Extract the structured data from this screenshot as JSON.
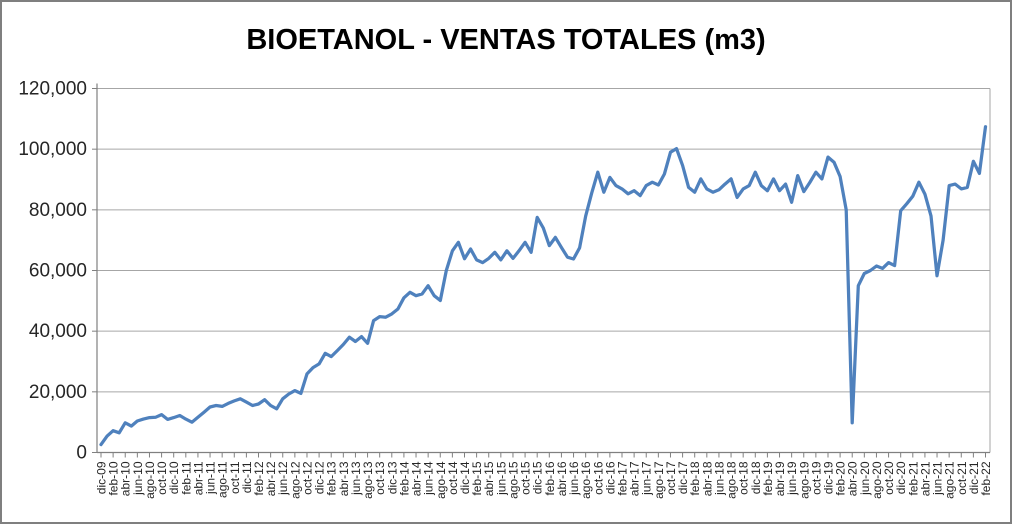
{
  "chart": {
    "title": "BIOETANOL - VENTAS TOTALES (m3)"
  },
  "chart_data": {
    "type": "line",
    "title": "BIOETANOL - VENTAS TOTALES (m3)",
    "xlabel": "",
    "ylabel": "",
    "ylim": [
      0,
      120000
    ],
    "yticks": [
      0,
      20000,
      40000,
      60000,
      80000,
      100000,
      120000
    ],
    "ytick_labels": [
      "0",
      "20,000",
      "40,000",
      "60,000",
      "80,000",
      "100,000",
      "120,000"
    ],
    "grid": "horizontal",
    "legend": "none",
    "line_color": "#4F81BD",
    "grid_color": "#A6A6A6",
    "axis_color": "#808080",
    "x_tick_every": 2,
    "x_tick_labels": [
      "dic-09",
      "feb-10",
      "abr-10",
      "jun-10",
      "ago-10",
      "oct-10",
      "dic-10",
      "feb-11",
      "abr-11",
      "jun-11",
      "ago-11",
      "oct-11",
      "dic-11",
      "feb-12",
      "abr-12",
      "jun-12",
      "ago-12",
      "oct-12",
      "dic-12",
      "feb-13",
      "abr-13",
      "jun-13",
      "ago-13",
      "oct-13",
      "dic-13",
      "feb-14",
      "abr-14",
      "jun-14",
      "ago-14",
      "oct-14",
      "dic-14",
      "feb-15",
      "abr-15",
      "jun-15",
      "ago-15",
      "oct-15",
      "dic-15",
      "feb-16",
      "abr-16",
      "jun-16",
      "ago-16",
      "oct-16",
      "dic-16",
      "feb-17",
      "abr-17",
      "jun-17",
      "ago-17",
      "oct-17",
      "dic-17",
      "feb-18",
      "abr-18",
      "jun-18",
      "ago-18",
      "oct-18",
      "dic-18",
      "feb-19",
      "abr-19",
      "jun-19",
      "ago-19",
      "oct-19",
      "dic-19",
      "feb-20",
      "abr-20",
      "jun-20",
      "ago-20",
      "oct-20",
      "dic-20",
      "feb-21",
      "abr-21",
      "jun-21",
      "ago-21",
      "oct-21",
      "dic-21",
      "feb-22"
    ],
    "x": [
      "dic-09",
      "ene-10",
      "feb-10",
      "mar-10",
      "abr-10",
      "may-10",
      "jun-10",
      "jul-10",
      "ago-10",
      "sep-10",
      "oct-10",
      "nov-10",
      "dic-10",
      "ene-11",
      "feb-11",
      "mar-11",
      "abr-11",
      "may-11",
      "jun-11",
      "jul-11",
      "ago-11",
      "sep-11",
      "oct-11",
      "nov-11",
      "dic-11",
      "ene-12",
      "feb-12",
      "mar-12",
      "abr-12",
      "may-12",
      "jun-12",
      "jul-12",
      "ago-12",
      "sep-12",
      "oct-12",
      "nov-12",
      "dic-12",
      "ene-13",
      "feb-13",
      "mar-13",
      "abr-13",
      "may-13",
      "jun-13",
      "jul-13",
      "ago-13",
      "sep-13",
      "oct-13",
      "nov-13",
      "dic-13",
      "ene-14",
      "feb-14",
      "mar-14",
      "abr-14",
      "may-14",
      "jun-14",
      "jul-14",
      "ago-14",
      "sep-14",
      "oct-14",
      "nov-14",
      "dic-14",
      "ene-15",
      "feb-15",
      "mar-15",
      "abr-15",
      "may-15",
      "jun-15",
      "jul-15",
      "ago-15",
      "sep-15",
      "oct-15",
      "nov-15",
      "dic-15",
      "ene-16",
      "feb-16",
      "mar-16",
      "abr-16",
      "may-16",
      "jun-16",
      "jul-16",
      "ago-16",
      "sep-16",
      "oct-16",
      "nov-16",
      "dic-16",
      "ene-17",
      "feb-17",
      "mar-17",
      "abr-17",
      "may-17",
      "jun-17",
      "jul-17",
      "ago-17",
      "sep-17",
      "oct-17",
      "nov-17",
      "dic-17",
      "ene-18",
      "feb-18",
      "mar-18",
      "abr-18",
      "may-18",
      "jun-18",
      "jul-18",
      "ago-18",
      "sep-18",
      "oct-18",
      "nov-18",
      "dic-18",
      "ene-19",
      "feb-19",
      "mar-19",
      "abr-19",
      "may-19",
      "jun-19",
      "jul-19",
      "ago-19",
      "sep-19",
      "oct-19",
      "nov-19",
      "dic-19",
      "ene-20",
      "feb-20",
      "mar-20",
      "abr-20",
      "may-20",
      "jun-20",
      "jul-20",
      "ago-20",
      "sep-20",
      "oct-20",
      "nov-20",
      "dic-20",
      "ene-21",
      "feb-21",
      "mar-21",
      "abr-21",
      "may-21",
      "jun-21",
      "jul-21",
      "ago-21",
      "sep-21",
      "oct-21",
      "nov-21",
      "dic-21",
      "ene-22",
      "feb-22"
    ],
    "series": [
      {
        "color": "#4F81BD",
        "values": [
          2600,
          5400,
          7200,
          6500,
          9800,
          8700,
          10400,
          11000,
          11500,
          11600,
          12500,
          10900,
          11500,
          12200,
          11000,
          10000,
          11600,
          13300,
          15000,
          15500,
          15200,
          16200,
          17000,
          17700,
          16600,
          15500,
          16000,
          17400,
          15500,
          14400,
          17700,
          19300,
          20400,
          19500,
          25900,
          28000,
          29200,
          32700,
          31600,
          33600,
          35600,
          38000,
          36600,
          38200,
          36000,
          43500,
          44800,
          44600,
          45700,
          47300,
          51000,
          52800,
          51700,
          52300,
          55000,
          51700,
          50100,
          60000,
          66500,
          69300,
          63900,
          67100,
          63500,
          62600,
          64000,
          66000,
          63500,
          66500,
          64000,
          66500,
          69300,
          66000,
          77500,
          74000,
          68200,
          70900,
          67600,
          64400,
          63800,
          67500,
          78000,
          85500,
          92400,
          85800,
          90700,
          88000,
          86900,
          85300,
          86300,
          84700,
          88000,
          89100,
          88200,
          91800,
          99000,
          100200,
          94600,
          87400,
          85800,
          90200,
          86900,
          85800,
          86600,
          88500,
          90200,
          84100,
          86900,
          88000,
          92400,
          88000,
          86300,
          90200,
          86300,
          88500,
          82500,
          91300,
          86000,
          89000,
          92400,
          90200,
          97400,
          95700,
          91000,
          80000,
          9800,
          55000,
          59000,
          60000,
          61500,
          60700,
          62600,
          61600,
          79700,
          82000,
          84500,
          89100,
          85200,
          78000,
          58300,
          70000,
          88000,
          88500,
          86900,
          87400,
          96000,
          92000,
          107400
        ]
      }
    ]
  }
}
